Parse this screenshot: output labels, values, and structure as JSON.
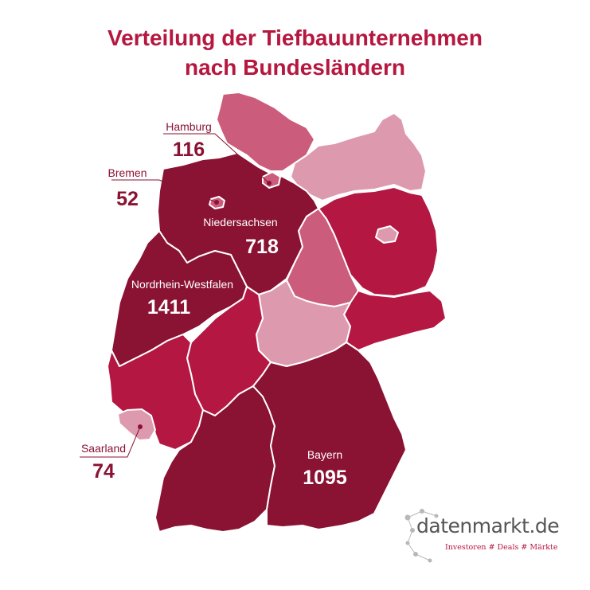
{
  "title_line1": "Verteilung der Tiefbauunternehmen",
  "title_line2": "nach Bundesländern",
  "states": {
    "hamburg": {
      "name": "Hamburg",
      "value": "116"
    },
    "bremen": {
      "name": "Bremen",
      "value": "52"
    },
    "niedersachsen": {
      "name": "Niedersachsen",
      "value": "718"
    },
    "nrw": {
      "name": "Nordrhein-Westfalen",
      "value": "1411"
    },
    "saarland": {
      "name": "Saarland",
      "value": "74"
    },
    "bayern": {
      "name": "Bayern",
      "value": "1095"
    }
  },
  "colors": {
    "title": "#b5173f",
    "darkest": "#8a1233",
    "dark": "#b41842",
    "medium": "#cc5c7c",
    "light": "#dd9aae",
    "border": "#ffffff"
  },
  "logo": {
    "name": "datenmarkt.de",
    "tagline": "Investoren # Deals # Märkte"
  }
}
